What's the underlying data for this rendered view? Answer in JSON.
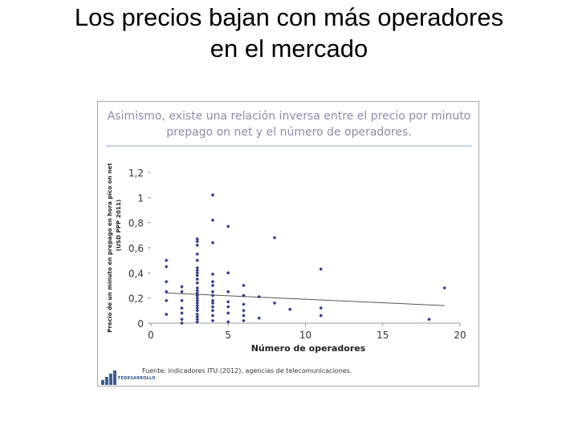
{
  "slide": {
    "title_line1": "Los precios bajan con más operadores",
    "title_line2": "en el mercado"
  },
  "chart_data": {
    "type": "scatter",
    "title_line1": "Asimismo, existe una relación inversa entre el precio por minuto",
    "title_line2": "prepago on net y el número de operadores.",
    "xlabel": "Número de operadores",
    "ylabel_line1": "Precio de un minuto en prepago en hora pico on net",
    "ylabel_line2": "(USD PPP 2011)",
    "xlim": [
      0,
      20
    ],
    "ylim": [
      0,
      1.2
    ],
    "x_ticks": [
      0,
      5,
      10,
      15,
      20
    ],
    "x_tick_labels": [
      "0",
      "5",
      "10",
      "15",
      "20"
    ],
    "y_ticks": [
      0,
      0.2,
      0.4,
      0.6,
      0.8,
      1,
      1.2
    ],
    "y_tick_labels": [
      "0",
      "0,2",
      "0,4",
      "0,6",
      "0,8",
      "1",
      "1,2"
    ],
    "grid": false,
    "legend": "none",
    "point_color": "#2e3a87",
    "trendline_color": "#555555",
    "points": [
      {
        "x": 1,
        "y": 0.5
      },
      {
        "x": 1,
        "y": 0.45
      },
      {
        "x": 1,
        "y": 0.33
      },
      {
        "x": 1,
        "y": 0.25
      },
      {
        "x": 1,
        "y": 0.18
      },
      {
        "x": 1,
        "y": 0.07
      },
      {
        "x": 2,
        "y": 0.29
      },
      {
        "x": 2,
        "y": 0.25
      },
      {
        "x": 2,
        "y": 0.18
      },
      {
        "x": 2,
        "y": 0.12
      },
      {
        "x": 2,
        "y": 0.08
      },
      {
        "x": 2,
        "y": 0.03
      },
      {
        "x": 2,
        "y": 0
      },
      {
        "x": 3,
        "y": 0.67
      },
      {
        "x": 3,
        "y": 0.65
      },
      {
        "x": 3,
        "y": 0.62
      },
      {
        "x": 3,
        "y": 0.55
      },
      {
        "x": 3,
        "y": 0.5
      },
      {
        "x": 3,
        "y": 0.44
      },
      {
        "x": 3,
        "y": 0.42
      },
      {
        "x": 3,
        "y": 0.4
      },
      {
        "x": 3,
        "y": 0.38
      },
      {
        "x": 3,
        "y": 0.35
      },
      {
        "x": 3,
        "y": 0.32
      },
      {
        "x": 3,
        "y": 0.28
      },
      {
        "x": 3,
        "y": 0.26
      },
      {
        "x": 3,
        "y": 0.24
      },
      {
        "x": 3,
        "y": 0.22
      },
      {
        "x": 3,
        "y": 0.2
      },
      {
        "x": 3,
        "y": 0.18
      },
      {
        "x": 3,
        "y": 0.16
      },
      {
        "x": 3,
        "y": 0.14
      },
      {
        "x": 3,
        "y": 0.12
      },
      {
        "x": 3,
        "y": 0.1
      },
      {
        "x": 3,
        "y": 0.07
      },
      {
        "x": 3,
        "y": 0.05
      },
      {
        "x": 3,
        "y": 0.03
      },
      {
        "x": 3,
        "y": 0.01
      },
      {
        "x": 4,
        "y": 1.02
      },
      {
        "x": 4,
        "y": 0.82
      },
      {
        "x": 4,
        "y": 0.64
      },
      {
        "x": 4,
        "y": 0.39
      },
      {
        "x": 4,
        "y": 0.33
      },
      {
        "x": 4,
        "y": 0.3
      },
      {
        "x": 4,
        "y": 0.25
      },
      {
        "x": 4,
        "y": 0.22
      },
      {
        "x": 4,
        "y": 0.18
      },
      {
        "x": 4,
        "y": 0.16
      },
      {
        "x": 4,
        "y": 0.13
      },
      {
        "x": 4,
        "y": 0.1
      },
      {
        "x": 4,
        "y": 0.06
      },
      {
        "x": 4,
        "y": 0.02
      },
      {
        "x": 5,
        "y": 0.77
      },
      {
        "x": 5,
        "y": 0.4
      },
      {
        "x": 5,
        "y": 0.25
      },
      {
        "x": 5,
        "y": 0.17
      },
      {
        "x": 5,
        "y": 0.13
      },
      {
        "x": 5,
        "y": 0.08
      },
      {
        "x": 5,
        "y": 0.01
      },
      {
        "x": 6,
        "y": 0.3
      },
      {
        "x": 6,
        "y": 0.22
      },
      {
        "x": 6,
        "y": 0.15
      },
      {
        "x": 6,
        "y": 0.1
      },
      {
        "x": 6,
        "y": 0.06
      },
      {
        "x": 6,
        "y": 0.02
      },
      {
        "x": 7,
        "y": 0.21
      },
      {
        "x": 7,
        "y": 0.04
      },
      {
        "x": 8,
        "y": 0.68
      },
      {
        "x": 8,
        "y": 0.16
      },
      {
        "x": 9,
        "y": 0.11
      },
      {
        "x": 11,
        "y": 0.43
      },
      {
        "x": 11,
        "y": 0.12
      },
      {
        "x": 11,
        "y": 0.06
      },
      {
        "x": 18,
        "y": 0.03
      },
      {
        "x": 19,
        "y": 0.28
      }
    ],
    "trendline": {
      "x": [
        1,
        19
      ],
      "y": [
        0.24,
        0.14
      ]
    },
    "source": "Fuente: indicadores ITU (2012), agencias de telecomunicaciones.",
    "logo_text": "FEDESARROLLO"
  }
}
